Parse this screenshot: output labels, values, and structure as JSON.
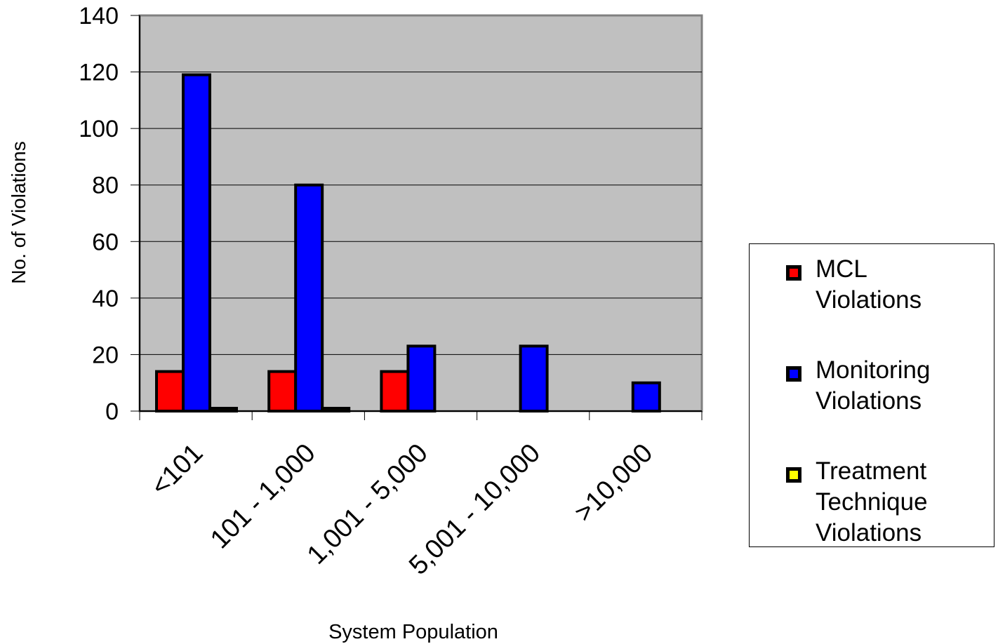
{
  "chart_data": {
    "type": "bar",
    "xlabel": "System Population",
    "ylabel": "No. of Violations",
    "categories": [
      "<101",
      "101 - 1,000",
      "1,001 - 5,000",
      "5,001 - 10,000",
      ">10,000"
    ],
    "ylim": [
      0,
      140
    ],
    "yticks": [
      0,
      20,
      40,
      60,
      80,
      100,
      120,
      140
    ],
    "grid": true,
    "legend_position": "right",
    "plot_background": "#c0c0c0",
    "series": [
      {
        "name": "MCL\nViolations",
        "color": "#ff0000",
        "values": [
          14,
          14,
          14,
          0,
          0
        ]
      },
      {
        "name": "Monitoring\nViolations",
        "color": "#0000ff",
        "values": [
          119,
          80,
          23,
          23,
          10
        ]
      },
      {
        "name": "Treatment\nTechnique\nViolations",
        "color": "#ffff00",
        "values": [
          1,
          1,
          0,
          0,
          0
        ]
      }
    ]
  }
}
